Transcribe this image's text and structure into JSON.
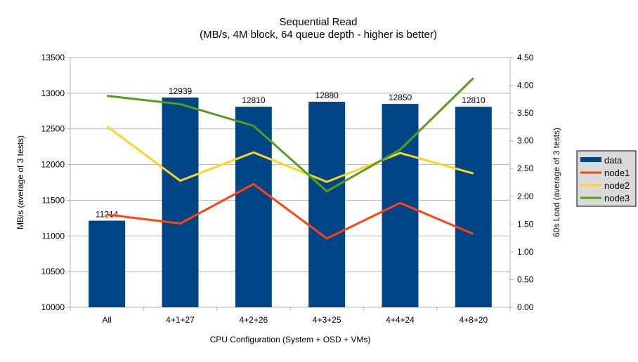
{
  "chart_data": {
    "type": "bar",
    "title": "Sequential Read",
    "subtitle": "(MB/s, 4M block, 64 queue depth - higher is better)",
    "xlabel": "CPU Configuration (System + OSD + VMs)",
    "ylabel": "MB/s (average of 3 tests)",
    "y2label": "60s Load (average of 3 tests)",
    "categories": [
      "All",
      "4+1+27",
      "4+2+26",
      "4+3+25",
      "4+4+24",
      "4+8+20"
    ],
    "ylim": [
      10000,
      13500
    ],
    "yticks": [
      "10000",
      "10500",
      "11000",
      "11500",
      "12000",
      "12500",
      "13000",
      "13500"
    ],
    "y2lim": [
      0,
      4.5
    ],
    "y2ticks": [
      "0.00",
      "0.50",
      "1.00",
      "1.50",
      "2.00",
      "2.50",
      "3.00",
      "3.50",
      "4.00",
      "4.50"
    ],
    "grid": true,
    "legend_position": "right",
    "series": [
      {
        "name": "data",
        "type": "bar",
        "axis": "left",
        "color": "#004586",
        "values": [
          11214,
          12939,
          12810,
          12880,
          12850,
          12810
        ],
        "labels": [
          "11214",
          "12939",
          "12810",
          "12880",
          "12850",
          "12810"
        ]
      },
      {
        "name": "node1",
        "type": "line",
        "axis": "right",
        "color": "#ff420e",
        "values": [
          1.67,
          1.51,
          2.22,
          1.24,
          1.88,
          1.32
        ]
      },
      {
        "name": "node2",
        "type": "line",
        "axis": "right",
        "color": "#ffd320",
        "values": [
          3.26,
          2.28,
          2.79,
          2.26,
          2.78,
          2.41
        ]
      },
      {
        "name": "node3",
        "type": "line",
        "axis": "right",
        "color": "#579d1c",
        "values": [
          3.81,
          3.66,
          3.27,
          2.09,
          2.84,
          4.13
        ]
      }
    ]
  }
}
